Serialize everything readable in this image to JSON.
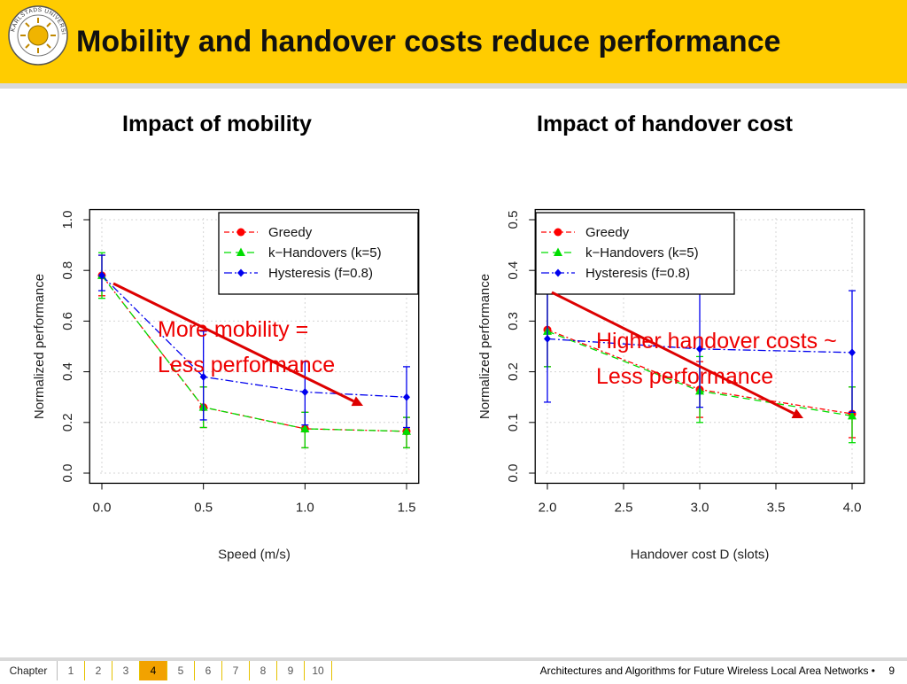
{
  "slide": {
    "title": "Mobility and handover costs reduce performance",
    "subtitle_left": "Impact of mobility",
    "subtitle_right": "Impact of handover cost",
    "logo_text": "KARLSTADS UNIVERSITET",
    "annotation_left": [
      "More mobility =",
      "Less performance"
    ],
    "annotation_right": [
      "Higher handover costs ~",
      "Less performance"
    ]
  },
  "colors": {
    "header": "#ffcc00",
    "greedy": "#ff0000",
    "khandovers": "#00dd00",
    "hysteresis": "#0000ee",
    "annotation": "#ee0000"
  },
  "footer": {
    "chapter_label": "Chapter",
    "pages": [
      "1",
      "2",
      "3",
      "4",
      "5",
      "6",
      "7",
      "8",
      "9",
      "10"
    ],
    "active_page": "4",
    "text": "Architectures and Algorithms for Future Wireless Local Area Networks",
    "bullet": "•",
    "page_number": "9"
  },
  "chart_data": [
    {
      "type": "line",
      "title": "Impact of mobility",
      "xlabel": "Speed (m/s)",
      "ylabel": "Normalized performance",
      "xlim": [
        0,
        1.5
      ],
      "ylim": [
        0,
        1.0
      ],
      "x_ticks": [
        "0.0",
        "0.5",
        "1.0",
        "1.5"
      ],
      "y_ticks": [
        "0.0",
        "0.2",
        "0.4",
        "0.6",
        "0.8",
        "1.0"
      ],
      "grid": true,
      "legend_position": "top-right",
      "x": [
        0.0,
        0.5,
        1.0,
        1.5
      ],
      "series": [
        {
          "name": "Greedy",
          "values": [
            0.78,
            0.26,
            0.175,
            0.165
          ],
          "err_low": [
            0.7,
            0.18,
            0.1,
            0.1
          ],
          "err_high": [
            0.86,
            0.34,
            0.24,
            0.22
          ]
        },
        {
          "name": "k−Handovers (k=5)",
          "values": [
            0.78,
            0.26,
            0.175,
            0.165
          ],
          "err_low": [
            0.69,
            0.18,
            0.1,
            0.1
          ],
          "err_high": [
            0.87,
            0.34,
            0.24,
            0.22
          ]
        },
        {
          "name": "Hysteresis (f=0.8)",
          "values": [
            0.78,
            0.38,
            0.32,
            0.3
          ],
          "err_low": [
            0.72,
            0.21,
            0.19,
            0.18
          ],
          "err_high": [
            0.86,
            0.56,
            0.44,
            0.42
          ]
        }
      ],
      "annotation": [
        "More mobility =",
        "Less performance"
      ]
    },
    {
      "type": "line",
      "title": "Impact of handover cost",
      "xlabel": "Handover cost D (slots)",
      "ylabel": "Normalized performance",
      "xlim": [
        2.0,
        4.0
      ],
      "ylim": [
        0,
        0.5
      ],
      "x_ticks": [
        "2.0",
        "2.5",
        "3.0",
        "3.5",
        "4.0"
      ],
      "y_ticks": [
        "0.0",
        "0.1",
        "0.2",
        "0.3",
        "0.4",
        "0.5"
      ],
      "grid": true,
      "legend_position": "top-left",
      "x": [
        2.0,
        3.0,
        4.0
      ],
      "series": [
        {
          "name": "Greedy",
          "values": [
            0.283,
            0.165,
            0.117
          ],
          "err_low": [
            0.21,
            0.11,
            0.07
          ],
          "err_high": [
            0.36,
            0.22,
            0.17
          ]
        },
        {
          "name": "k−Handovers (k=5)",
          "values": [
            0.28,
            0.162,
            0.113
          ],
          "err_low": [
            0.21,
            0.1,
            0.06
          ],
          "err_high": [
            0.36,
            0.23,
            0.17
          ]
        },
        {
          "name": "Hysteresis (f=0.8)",
          "values": [
            0.265,
            0.245,
            0.238
          ],
          "err_low": [
            0.14,
            0.13,
            0.12
          ],
          "err_high": [
            0.36,
            0.36,
            0.36
          ]
        }
      ],
      "annotation": [
        "Higher handover costs ~",
        "Less performance"
      ]
    }
  ]
}
